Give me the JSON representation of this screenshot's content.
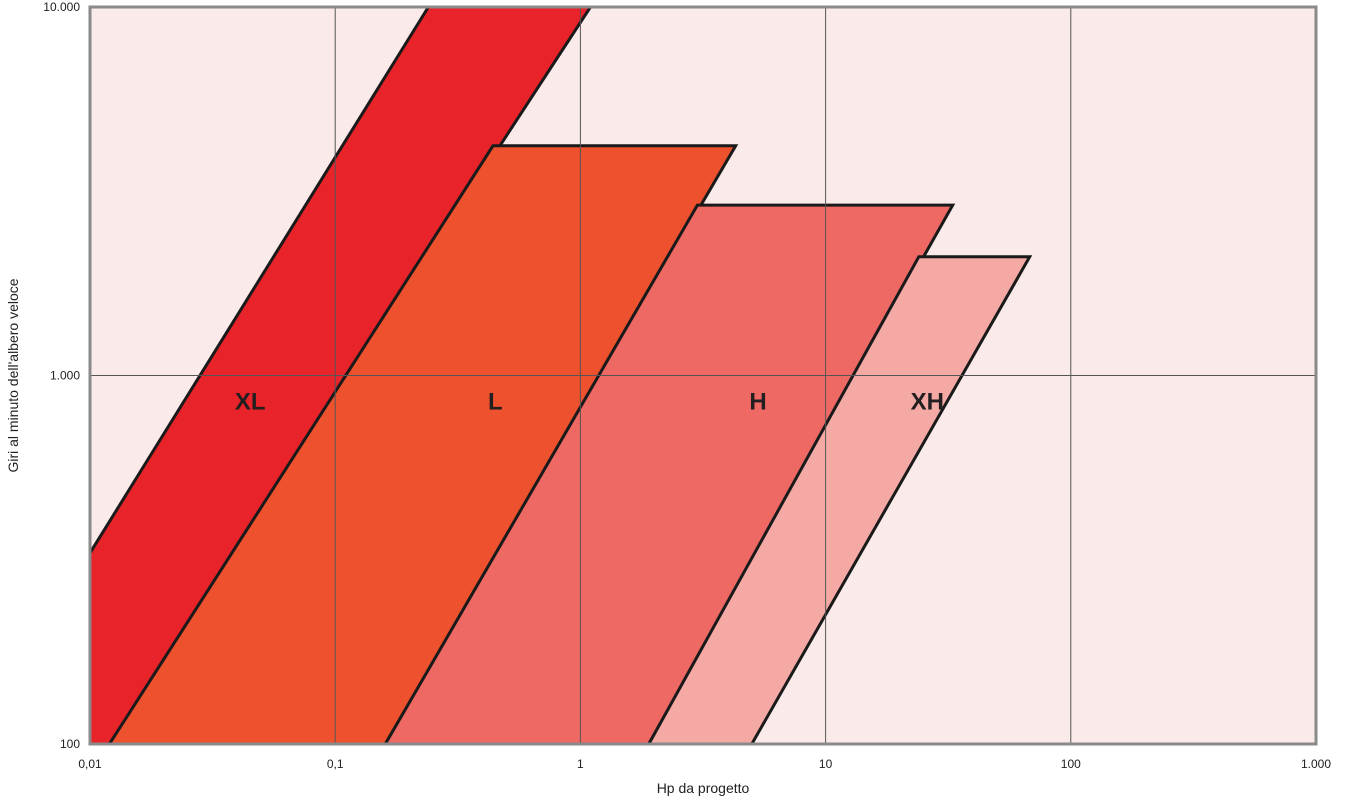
{
  "chart_data": {
    "type": "area",
    "title": "",
    "xlabel": "Hp da progetto",
    "ylabel": "Giri al minuto dell'albero veloce",
    "x_scale": "log",
    "y_scale": "log",
    "xlim": [
      0.01,
      1000
    ],
    "ylim": [
      100,
      10000
    ],
    "grid": true,
    "background_color": "#fbeaea",
    "x_ticks": [
      {
        "value": 0.01,
        "label": "0,01"
      },
      {
        "value": 0.1,
        "label": "0,1"
      },
      {
        "value": 1,
        "label": "1"
      },
      {
        "value": 10,
        "label": "10"
      },
      {
        "value": 100,
        "label": "100"
      },
      {
        "value": 1000,
        "label": "1.000"
      }
    ],
    "y_ticks": [
      {
        "value": 100,
        "label": "100"
      },
      {
        "value": 1000,
        "label": "1.000"
      },
      {
        "value": 10000,
        "label": "10.000"
      }
    ],
    "series": [
      {
        "name": "XL",
        "color": "#e8232a",
        "label_at": [
          0.045,
          850
        ],
        "polygon": [
          [
            0.01,
            100
          ],
          [
            0.01,
            330
          ],
          [
            0.24,
            10000
          ],
          [
            1.1,
            10000
          ],
          [
            0.012,
            100
          ]
        ]
      },
      {
        "name": "L",
        "color": "#ee512d",
        "label_at": [
          0.45,
          850
        ],
        "polygon": [
          [
            0.012,
            100
          ],
          [
            0.44,
            4200
          ],
          [
            4.3,
            4200
          ],
          [
            0.16,
            100
          ]
        ]
      },
      {
        "name": "H",
        "color": "#ee6864",
        "label_at": [
          5.3,
          850
        ],
        "polygon": [
          [
            0.16,
            100
          ],
          [
            3.0,
            2900
          ],
          [
            33,
            2900
          ],
          [
            1.9,
            100
          ]
        ]
      },
      {
        "name": "XH",
        "color": "#f4a9a5",
        "label_at": [
          26,
          850
        ],
        "polygon": [
          [
            1.9,
            100
          ],
          [
            24,
            2100
          ],
          [
            68,
            2100
          ],
          [
            5.0,
            100
          ]
        ]
      }
    ]
  }
}
